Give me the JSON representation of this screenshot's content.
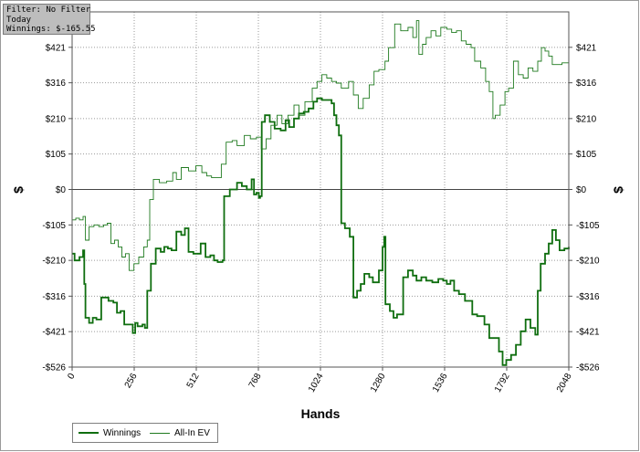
{
  "info": {
    "filter": "Filter: No Filter",
    "period": "Today",
    "winnings": "Winnings: $-165.55"
  },
  "colors": {
    "winnings": "#0f6e0f",
    "allin_ev": "#1f7a1f",
    "grid": "#9a9a9a",
    "zero_line": "#444444"
  },
  "chart_data": {
    "type": "line",
    "title": "",
    "xlabel": "Hands",
    "ylabel": "$",
    "xlim": [
      0,
      2048
    ],
    "ylim": [
      -526,
      526
    ],
    "x_ticks": [
      0,
      256,
      512,
      768,
      1024,
      1280,
      1536,
      1792,
      2048
    ],
    "x_tick_labels": [
      "0",
      "256",
      "512",
      "768",
      "1024",
      "1280",
      "1536",
      "1792",
      "2048"
    ],
    "y_ticks": [
      421,
      316,
      210,
      105,
      0,
      -105,
      -210,
      -316,
      -421,
      -526
    ],
    "y_tick_labels": [
      "$421",
      "$316",
      "$210",
      "$105",
      "$0",
      "-$105",
      "-$210",
      "-$316",
      "-$421",
      "-$526"
    ],
    "grid": true,
    "legend_position": "bottom-left",
    "series": [
      {
        "name": "Winnings",
        "points": [
          [
            0,
            -190
          ],
          [
            10,
            -210
          ],
          [
            30,
            -200
          ],
          [
            45,
            -180
          ],
          [
            50,
            -280
          ],
          [
            55,
            -380
          ],
          [
            70,
            -395
          ],
          [
            85,
            -380
          ],
          [
            100,
            -385
          ],
          [
            120,
            -320
          ],
          [
            150,
            -330
          ],
          [
            170,
            -335
          ],
          [
            185,
            -365
          ],
          [
            200,
            -360
          ],
          [
            215,
            -400
          ],
          [
            240,
            -400
          ],
          [
            250,
            -425
          ],
          [
            260,
            -395
          ],
          [
            270,
            -405
          ],
          [
            290,
            -400
          ],
          [
            300,
            -410
          ],
          [
            310,
            -300
          ],
          [
            325,
            -220
          ],
          [
            345,
            -175
          ],
          [
            365,
            -185
          ],
          [
            380,
            -170
          ],
          [
            395,
            -175
          ],
          [
            410,
            -180
          ],
          [
            430,
            -125
          ],
          [
            450,
            -135
          ],
          [
            465,
            -115
          ],
          [
            480,
            -185
          ],
          [
            500,
            -190
          ],
          [
            530,
            -160
          ],
          [
            550,
            -200
          ],
          [
            570,
            -195
          ],
          [
            585,
            -210
          ],
          [
            600,
            -215
          ],
          [
            620,
            -210
          ],
          [
            627,
            -20
          ],
          [
            650,
            0
          ],
          [
            680,
            20
          ],
          [
            700,
            10
          ],
          [
            720,
            0
          ],
          [
            740,
            30
          ],
          [
            750,
            -15
          ],
          [
            760,
            -10
          ],
          [
            770,
            -25
          ],
          [
            775,
            -20
          ],
          [
            782,
            200
          ],
          [
            795,
            220
          ],
          [
            815,
            200
          ],
          [
            835,
            180
          ],
          [
            860,
            175
          ],
          [
            880,
            205
          ],
          [
            895,
            185
          ],
          [
            915,
            210
          ],
          [
            935,
            225
          ],
          [
            955,
            230
          ],
          [
            975,
            240
          ],
          [
            995,
            260
          ],
          [
            1010,
            270
          ],
          [
            1030,
            265
          ],
          [
            1050,
            265
          ],
          [
            1070,
            255
          ],
          [
            1080,
            220
          ],
          [
            1090,
            190
          ],
          [
            1100,
            160
          ],
          [
            1110,
            -100
          ],
          [
            1125,
            -115
          ],
          [
            1145,
            -140
          ],
          [
            1160,
            -320
          ],
          [
            1175,
            -300
          ],
          [
            1190,
            -280
          ],
          [
            1205,
            -250
          ],
          [
            1225,
            -260
          ],
          [
            1240,
            -275
          ],
          [
            1265,
            -240
          ],
          [
            1280,
            -170
          ],
          [
            1287,
            -140
          ],
          [
            1292,
            -340
          ],
          [
            1310,
            -360
          ],
          [
            1325,
            -380
          ],
          [
            1340,
            -370
          ],
          [
            1365,
            -260
          ],
          [
            1385,
            -240
          ],
          [
            1405,
            -255
          ],
          [
            1420,
            -270
          ],
          [
            1440,
            -260
          ],
          [
            1460,
            -270
          ],
          [
            1485,
            -275
          ],
          [
            1510,
            -265
          ],
          [
            1530,
            -270
          ],
          [
            1545,
            -280
          ],
          [
            1560,
            -270
          ],
          [
            1575,
            -300
          ],
          [
            1595,
            -310
          ],
          [
            1620,
            -330
          ],
          [
            1650,
            -370
          ],
          [
            1670,
            -375
          ],
          [
            1700,
            -400
          ],
          [
            1720,
            -440
          ],
          [
            1760,
            -480
          ],
          [
            1775,
            -520
          ],
          [
            1790,
            -505
          ],
          [
            1810,
            -490
          ],
          [
            1830,
            -460
          ],
          [
            1850,
            -420
          ],
          [
            1870,
            -385
          ],
          [
            1890,
            -410
          ],
          [
            1910,
            -430
          ],
          [
            1920,
            -300
          ],
          [
            1932,
            -220
          ],
          [
            1950,
            -190
          ],
          [
            1965,
            -160
          ],
          [
            1980,
            -120
          ],
          [
            1995,
            -150
          ],
          [
            2010,
            -180
          ],
          [
            2030,
            -175
          ],
          [
            2048,
            -170
          ]
        ]
      },
      {
        "name": "All-In EV",
        "points": [
          [
            0,
            -90
          ],
          [
            15,
            -85
          ],
          [
            30,
            -90
          ],
          [
            45,
            -80
          ],
          [
            55,
            -150
          ],
          [
            70,
            -110
          ],
          [
            90,
            -105
          ],
          [
            110,
            -110
          ],
          [
            130,
            -105
          ],
          [
            145,
            -100
          ],
          [
            160,
            -160
          ],
          [
            175,
            -150
          ],
          [
            190,
            -170
          ],
          [
            205,
            -200
          ],
          [
            220,
            -190
          ],
          [
            235,
            -240
          ],
          [
            255,
            -220
          ],
          [
            275,
            -200
          ],
          [
            295,
            -170
          ],
          [
            310,
            -150
          ],
          [
            320,
            -30
          ],
          [
            335,
            30
          ],
          [
            360,
            20
          ],
          [
            390,
            25
          ],
          [
            415,
            50
          ],
          [
            430,
            30
          ],
          [
            450,
            65
          ],
          [
            480,
            55
          ],
          [
            510,
            70
          ],
          [
            535,
            50
          ],
          [
            555,
            40
          ],
          [
            575,
            35
          ],
          [
            600,
            35
          ],
          [
            615,
            75
          ],
          [
            635,
            140
          ],
          [
            660,
            145
          ],
          [
            680,
            130
          ],
          [
            710,
            160
          ],
          [
            735,
            150
          ],
          [
            760,
            155
          ],
          [
            780,
            120
          ],
          [
            800,
            150
          ],
          [
            820,
            190
          ],
          [
            845,
            220
          ],
          [
            865,
            195
          ],
          [
            890,
            220
          ],
          [
            915,
            250
          ],
          [
            935,
            220
          ],
          [
            960,
            260
          ],
          [
            990,
            300
          ],
          [
            1010,
            320
          ],
          [
            1030,
            340
          ],
          [
            1050,
            330
          ],
          [
            1070,
            320
          ],
          [
            1090,
            315
          ],
          [
            1110,
            300
          ],
          [
            1140,
            320
          ],
          [
            1160,
            280
          ],
          [
            1180,
            240
          ],
          [
            1200,
            270
          ],
          [
            1225,
            310
          ],
          [
            1245,
            350
          ],
          [
            1265,
            355
          ],
          [
            1290,
            380
          ],
          [
            1305,
            420
          ],
          [
            1330,
            490
          ],
          [
            1355,
            470
          ],
          [
            1385,
            480
          ],
          [
            1405,
            450
          ],
          [
            1420,
            500
          ],
          [
            1430,
            400
          ],
          [
            1445,
            430
          ],
          [
            1460,
            450
          ],
          [
            1480,
            470
          ],
          [
            1500,
            455
          ],
          [
            1520,
            480
          ],
          [
            1545,
            475
          ],
          [
            1565,
            465
          ],
          [
            1585,
            470
          ],
          [
            1605,
            440
          ],
          [
            1625,
            430
          ],
          [
            1645,
            420
          ],
          [
            1660,
            380
          ],
          [
            1685,
            360
          ],
          [
            1705,
            320
          ],
          [
            1720,
            290
          ],
          [
            1735,
            210
          ],
          [
            1745,
            220
          ],
          [
            1765,
            250
          ],
          [
            1785,
            290
          ],
          [
            1800,
            300
          ],
          [
            1820,
            380
          ],
          [
            1840,
            340
          ],
          [
            1860,
            330
          ],
          [
            1880,
            360
          ],
          [
            1900,
            350
          ],
          [
            1920,
            380
          ],
          [
            1935,
            420
          ],
          [
            1950,
            410
          ],
          [
            1965,
            395
          ],
          [
            1980,
            370
          ],
          [
            2000,
            370
          ],
          [
            2020,
            375
          ],
          [
            2048,
            380
          ]
        ]
      }
    ]
  }
}
